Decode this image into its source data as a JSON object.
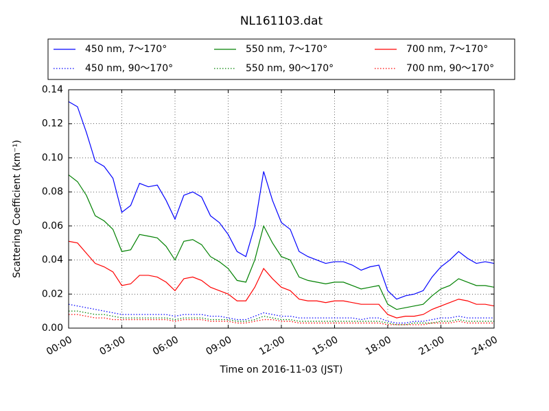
{
  "chart_data": {
    "type": "line",
    "title": "NL161103.dat",
    "xlabel": "Time on 2016-11-03 (JST)",
    "ylabel": "Scattering Coefficient (km⁻¹)",
    "x": [
      0,
      0.5,
      1,
      1.5,
      2,
      2.5,
      3,
      3.5,
      4,
      4.5,
      5,
      5.5,
      6,
      6.5,
      7,
      7.5,
      8,
      8.5,
      9,
      9.5,
      10,
      10.5,
      11,
      11.5,
      12,
      12.5,
      13,
      13.5,
      14,
      14.5,
      15,
      15.5,
      16,
      16.5,
      17,
      17.5,
      18,
      18.5,
      19,
      19.5,
      20,
      20.5,
      21,
      21.5,
      22,
      22.5,
      23,
      23.5,
      24
    ],
    "xlim": [
      0,
      24
    ],
    "xticks": [
      {
        "value": 0,
        "label": "00:00"
      },
      {
        "value": 3,
        "label": "03:00"
      },
      {
        "value": 6,
        "label": "06:00"
      },
      {
        "value": 9,
        "label": "09:00"
      },
      {
        "value": 12,
        "label": "12:00"
      },
      {
        "value": 15,
        "label": "15:00"
      },
      {
        "value": 18,
        "label": "18:00"
      },
      {
        "value": 21,
        "label": "21:00"
      },
      {
        "value": 24,
        "label": "24:00"
      }
    ],
    "ylim": [
      0,
      0.14
    ],
    "yticks": [
      {
        "value": 0,
        "label": "0.00"
      },
      0.02,
      0.04,
      0.06,
      0.08,
      {
        "value": 0.1,
        "label": "0.10"
      },
      0.12,
      0.14
    ],
    "grid": true,
    "legend": "top",
    "series": [
      {
        "name": "450 nm, 7～170°",
        "color": "#0000ff",
        "linestyle": "solid",
        "values": [
          0.133,
          0.13,
          0.115,
          0.098,
          0.095,
          0.088,
          0.068,
          0.072,
          0.085,
          0.083,
          0.084,
          0.075,
          0.064,
          0.078,
          0.08,
          0.077,
          0.066,
          0.062,
          0.055,
          0.045,
          0.042,
          0.06,
          0.092,
          0.075,
          0.062,
          0.058,
          0.045,
          0.042,
          0.04,
          0.038,
          0.039,
          0.039,
          0.037,
          0.034,
          0.036,
          0.037,
          0.022,
          0.017,
          0.019,
          0.02,
          0.022,
          0.03,
          0.036,
          0.04,
          0.045,
          0.041,
          0.038,
          0.039,
          0.038
        ]
      },
      {
        "name": "450 nm, 90～170°",
        "color": "#0000ff",
        "linestyle": "dotted",
        "values": [
          0.014,
          0.013,
          0.012,
          0.011,
          0.01,
          0.009,
          0.008,
          0.008,
          0.008,
          0.008,
          0.008,
          0.008,
          0.007,
          0.008,
          0.008,
          0.008,
          0.007,
          0.007,
          0.006,
          0.005,
          0.005,
          0.007,
          0.009,
          0.008,
          0.007,
          0.007,
          0.006,
          0.006,
          0.006,
          0.006,
          0.006,
          0.006,
          0.006,
          0.005,
          0.006,
          0.006,
          0.004,
          0.003,
          0.003,
          0.004,
          0.004,
          0.005,
          0.006,
          0.006,
          0.007,
          0.006,
          0.006,
          0.006,
          0.006
        ]
      },
      {
        "name": "550 nm, 7～170°",
        "color": "#008000",
        "linestyle": "solid",
        "values": [
          0.09,
          0.086,
          0.078,
          0.066,
          0.063,
          0.058,
          0.045,
          0.046,
          0.055,
          0.054,
          0.053,
          0.048,
          0.04,
          0.051,
          0.052,
          0.049,
          0.042,
          0.039,
          0.035,
          0.028,
          0.027,
          0.04,
          0.06,
          0.05,
          0.042,
          0.04,
          0.03,
          0.028,
          0.027,
          0.026,
          0.027,
          0.027,
          0.025,
          0.023,
          0.024,
          0.025,
          0.014,
          0.011,
          0.012,
          0.013,
          0.014,
          0.019,
          0.023,
          0.025,
          0.029,
          0.027,
          0.025,
          0.025,
          0.024
        ]
      },
      {
        "name": "550 nm, 90～170°",
        "color": "#008000",
        "linestyle": "dotted",
        "values": [
          0.01,
          0.01,
          0.009,
          0.008,
          0.008,
          0.007,
          0.006,
          0.006,
          0.006,
          0.006,
          0.006,
          0.006,
          0.005,
          0.006,
          0.006,
          0.006,
          0.005,
          0.005,
          0.005,
          0.004,
          0.004,
          0.005,
          0.007,
          0.006,
          0.005,
          0.005,
          0.004,
          0.004,
          0.004,
          0.004,
          0.004,
          0.004,
          0.004,
          0.004,
          0.004,
          0.004,
          0.003,
          0.002,
          0.002,
          0.003,
          0.003,
          0.003,
          0.004,
          0.004,
          0.005,
          0.004,
          0.004,
          0.004,
          0.004
        ]
      },
      {
        "name": "700 nm, 7～170°",
        "color": "#ff0000",
        "linestyle": "solid",
        "values": [
          0.051,
          0.05,
          0.044,
          0.038,
          0.036,
          0.033,
          0.025,
          0.026,
          0.031,
          0.031,
          0.03,
          0.027,
          0.022,
          0.029,
          0.03,
          0.028,
          0.024,
          0.022,
          0.02,
          0.016,
          0.016,
          0.024,
          0.035,
          0.029,
          0.024,
          0.022,
          0.017,
          0.016,
          0.016,
          0.015,
          0.016,
          0.016,
          0.015,
          0.014,
          0.014,
          0.014,
          0.008,
          0.006,
          0.007,
          0.007,
          0.008,
          0.011,
          0.013,
          0.015,
          0.017,
          0.016,
          0.014,
          0.014,
          0.013
        ]
      },
      {
        "name": "700 nm, 90～170°",
        "color": "#ff0000",
        "linestyle": "dotted",
        "values": [
          0.008,
          0.008,
          0.007,
          0.006,
          0.006,
          0.005,
          0.005,
          0.005,
          0.005,
          0.005,
          0.005,
          0.005,
          0.004,
          0.005,
          0.005,
          0.005,
          0.004,
          0.004,
          0.004,
          0.003,
          0.003,
          0.004,
          0.005,
          0.005,
          0.004,
          0.004,
          0.003,
          0.003,
          0.003,
          0.003,
          0.003,
          0.003,
          0.003,
          0.003,
          0.003,
          0.003,
          0.002,
          0.002,
          0.002,
          0.002,
          0.002,
          0.003,
          0.003,
          0.003,
          0.004,
          0.003,
          0.003,
          0.003,
          0.003
        ]
      }
    ]
  }
}
